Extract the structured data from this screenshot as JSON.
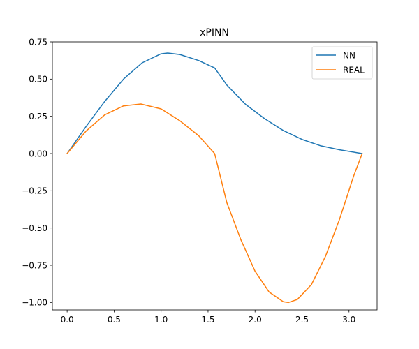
{
  "chart_data": {
    "type": "line",
    "title": "xPINN",
    "xlabel": "",
    "ylabel": "",
    "xlim": [
      -0.157,
      3.299
    ],
    "ylim": [
      -1.05,
      0.75
    ],
    "xticks": [
      "0.0",
      "0.5",
      "1.0",
      "1.5",
      "2.0",
      "2.5",
      "3.0"
    ],
    "xtick_values": [
      0.0,
      0.5,
      1.0,
      1.5,
      2.0,
      2.5,
      3.0
    ],
    "yticks": [
      "0.75",
      "0.50",
      "0.25",
      "0.00",
      "−0.25",
      "−0.50",
      "−0.75",
      "−1.00"
    ],
    "ytick_values": [
      0.75,
      0.5,
      0.25,
      0.0,
      -0.25,
      -0.5,
      -0.75,
      -1.0
    ],
    "grid": false,
    "legend_position": "top-right",
    "series": [
      {
        "name": "NN",
        "color": "#1f77b4",
        "x": [
          0.0,
          0.2,
          0.4,
          0.6,
          0.8,
          1.0,
          1.07,
          1.2,
          1.4,
          1.57,
          1.7,
          1.9,
          2.1,
          2.3,
          2.5,
          2.7,
          2.9,
          3.14
        ],
        "y": [
          0.0,
          0.18,
          0.35,
          0.5,
          0.61,
          0.67,
          0.675,
          0.665,
          0.625,
          0.575,
          0.46,
          0.33,
          0.235,
          0.155,
          0.095,
          0.052,
          0.025,
          0.0
        ]
      },
      {
        "name": "REAL",
        "color": "#ff7f0e",
        "x": [
          0.0,
          0.2,
          0.4,
          0.6,
          0.785,
          1.0,
          1.2,
          1.4,
          1.57,
          1.7,
          1.85,
          2.0,
          2.15,
          2.3,
          2.356,
          2.45,
          2.6,
          2.75,
          2.9,
          3.05,
          3.14
        ],
        "y": [
          0.0,
          0.15,
          0.26,
          0.32,
          0.333,
          0.3,
          0.22,
          0.12,
          0.0,
          -0.33,
          -0.58,
          -0.79,
          -0.93,
          -0.995,
          -1.0,
          -0.98,
          -0.88,
          -0.69,
          -0.44,
          -0.15,
          0.0
        ]
      }
    ]
  }
}
